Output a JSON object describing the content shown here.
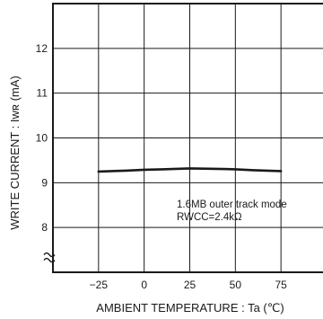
{
  "chart_data": {
    "type": "line",
    "xlabel": "AMBIENT TEMPERATURE : Ta (℃)",
    "ylabel": "WRITE CURRENT : Iwʀ (mA)",
    "x_ticks": [
      -25,
      0,
      25,
      50,
      75
    ],
    "y_ticks": [
      8,
      9,
      10,
      11,
      12
    ],
    "xlim": [
      -50,
      100
    ],
    "ylim": [
      7,
      13
    ],
    "y_axis_break": true,
    "grid": true,
    "annotation": {
      "lines": [
        "1.6MB outer track mode",
        "RWCC=2.4kΩ"
      ]
    },
    "series": [
      {
        "x": [
          -25,
          -10,
          0,
          10,
          25,
          40,
          50,
          60,
          75
        ],
        "y": [
          9.25,
          9.27,
          9.29,
          9.3,
          9.32,
          9.31,
          9.3,
          9.28,
          9.26
        ]
      }
    ]
  }
}
